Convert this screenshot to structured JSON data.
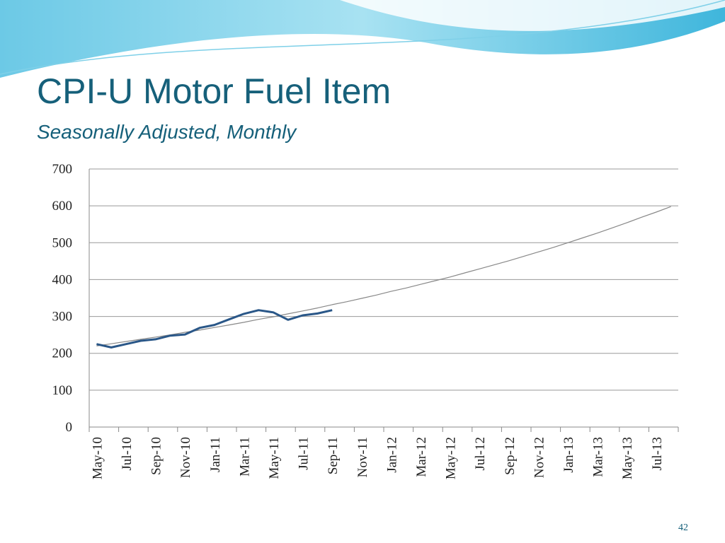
{
  "chart_data": {
    "type": "line",
    "title": "CPI-U Motor Fuel Item",
    "subtitle": "Seasonally Adjusted, Monthly",
    "page_number": "42",
    "categories": [
      "May-10",
      null,
      "Jul-10",
      null,
      "Sep-10",
      null,
      "Nov-10",
      null,
      "Jan-11",
      null,
      "Mar-11",
      null,
      "May-11",
      null,
      "Jul-11",
      null,
      "Sep-11",
      null,
      "Nov-11",
      null,
      "Jan-12",
      null,
      "Mar-12",
      null,
      "May-12",
      null,
      "Jul-12",
      null,
      "Sep-12",
      null,
      "Nov-12",
      null,
      "Jan-13",
      null,
      "Mar-13",
      null,
      "May-13",
      null,
      "Jul-13",
      null
    ],
    "series": [
      {
        "color": "#888888",
        "values": [
          220,
          226,
          232,
          238,
          244,
          250,
          257,
          263,
          270,
          277,
          284,
          292,
          299,
          307,
          315,
          323,
          332,
          340,
          349,
          358,
          368,
          377,
          387,
          397,
          407,
          418,
          429,
          440,
          451,
          463,
          475,
          487,
          500,
          513,
          526,
          540,
          554,
          569,
          583,
          598
        ]
      },
      {
        "color": "#2a5788",
        "values": [
          225,
          216,
          225,
          234,
          238,
          248,
          251,
          269,
          277,
          292,
          307,
          317,
          311,
          291,
          303,
          308,
          317,
          null,
          null,
          null,
          null,
          null,
          null,
          null,
          null,
          null,
          null,
          null,
          null,
          null,
          null,
          null,
          null,
          null,
          null,
          null,
          null,
          null,
          null,
          null
        ]
      }
    ],
    "ylim": [
      0,
      700
    ],
    "yticks": [
      0,
      100,
      200,
      300,
      400,
      500,
      600,
      700
    ],
    "grid": true
  }
}
